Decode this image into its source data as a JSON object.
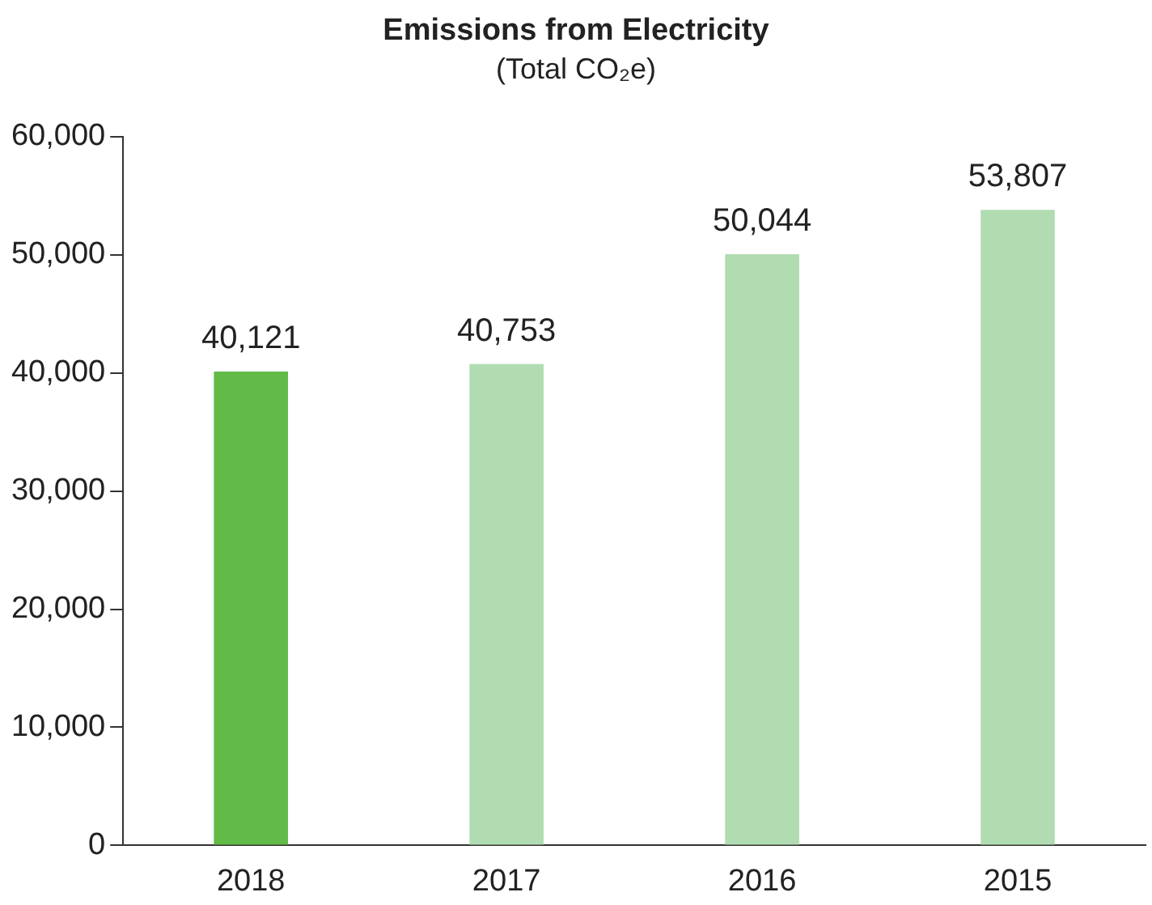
{
  "chart_data": {
    "type": "bar",
    "title": "Emissions from Electricity",
    "subtitle": "(Total CO₂e)",
    "categories": [
      "2018",
      "2017",
      "2016",
      "2015"
    ],
    "values": [
      40121,
      40753,
      50044,
      53807
    ],
    "colors": [
      "#62bb46",
      "#b1dcb2",
      "#b1dcb2",
      "#b1dcb2"
    ],
    "value_labels": [
      "40,121",
      "40,753",
      "50,044",
      "53,807"
    ],
    "ylim": [
      0,
      60000
    ],
    "yticks": [
      0,
      {
        "value": 10000,
        "label": "10,000"
      },
      {
        "value": 20000,
        "label": "20,000"
      },
      {
        "value": 30000,
        "label": "30,000"
      },
      {
        "value": 40000,
        "label": "40,000"
      },
      {
        "value": 50000,
        "label": "50,000"
      },
      {
        "value": 60000,
        "label": "60,000"
      }
    ],
    "grid": false,
    "legend": false
  }
}
